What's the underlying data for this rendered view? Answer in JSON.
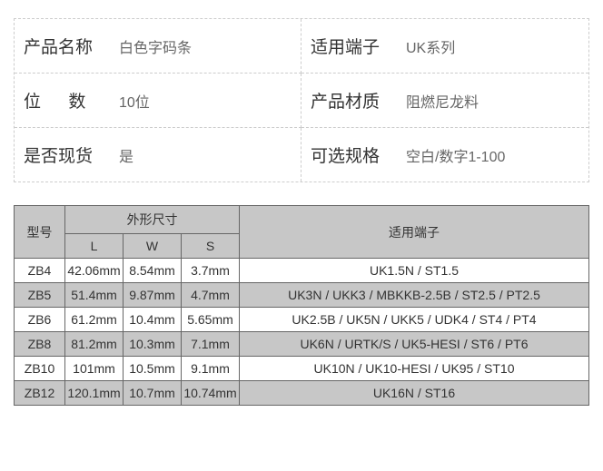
{
  "info": {
    "rows": [
      {
        "label": "产品名称",
        "value": "白色字码条",
        "spaced": false
      },
      {
        "label": "适用端子",
        "value": "UK系列",
        "spaced": false
      },
      {
        "label": "位数",
        "value": "10位",
        "spaced": true
      },
      {
        "label": "产品材质",
        "value": "阻燃尼龙料",
        "spaced": false
      },
      {
        "label": "是否现货",
        "value": "是",
        "spaced": false
      },
      {
        "label": "可选规格",
        "value": "空白/数字1-100",
        "spaced": false
      }
    ]
  },
  "spec": {
    "headers": {
      "model": "型号",
      "dimensions": "外形尺寸",
      "dim_l": "L",
      "dim_w": "W",
      "dim_s": "S",
      "terminal": "适用端子"
    },
    "rows": [
      {
        "model": "ZB4",
        "l": "42.06mm",
        "w": "8.54mm",
        "s": "3.7mm",
        "terminal": "UK1.5N / ST1.5"
      },
      {
        "model": "ZB5",
        "l": "51.4mm",
        "w": "9.87mm",
        "s": "4.7mm",
        "terminal": "UK3N / UKK3 / MBKKB-2.5B / ST2.5 / PT2.5"
      },
      {
        "model": "ZB6",
        "l": "61.2mm",
        "w": "10.4mm",
        "s": "5.65mm",
        "terminal": "UK2.5B / UK5N / UKK5 / UDK4 / ST4 / PT4"
      },
      {
        "model": "ZB8",
        "l": "81.2mm",
        "w": "10.3mm",
        "s": "7.1mm",
        "terminal": "UK6N / URTK/S / UK5-HESI / ST6 / PT6"
      },
      {
        "model": "ZB10",
        "l": "101mm",
        "w": "10.5mm",
        "s": "9.1mm",
        "terminal": "UK10N / UK10-HESI / UK95 / ST10"
      },
      {
        "model": "ZB12",
        "l": "120.1mm",
        "w": "10.7mm",
        "s": "10.74mm",
        "terminal": "UK16N / ST16"
      }
    ]
  },
  "colors": {
    "border": "#666666",
    "dashed_border": "#cccccc",
    "header_bg": "#c7c7c7",
    "row_even_bg": "#ffffff",
    "row_odd_bg": "#c7c7c7",
    "text_primary": "#333333",
    "text_secondary": "#666666"
  }
}
